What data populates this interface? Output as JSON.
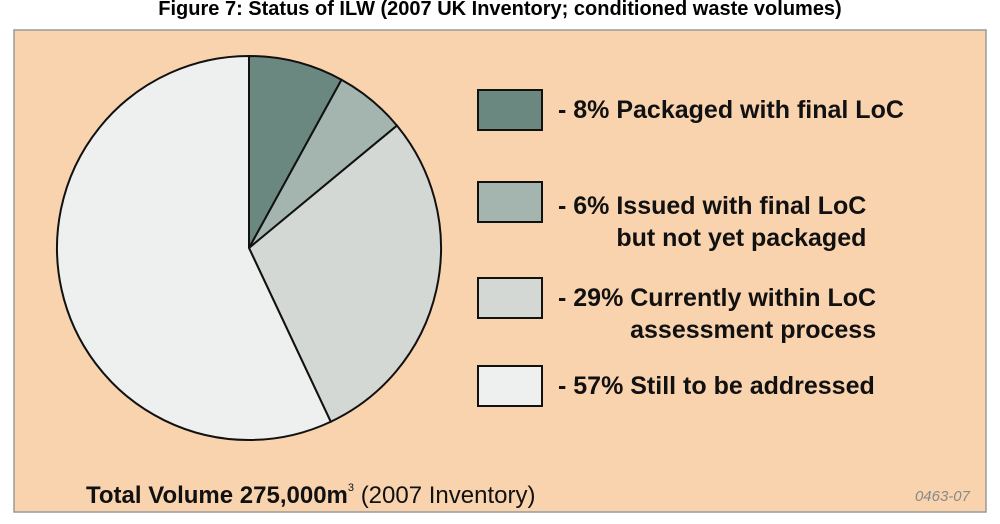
{
  "chart_data": {
    "type": "pie",
    "title": "Figure 7: Status of ILW (2007 UK Inventory; conditioned waste volumes)",
    "categories": [
      "- 8% Packaged with final LoC",
      "- 6% Issued with final LoC\nbut not yet packaged",
      "- 29%  Currently within LoC\nassessment process",
      "- 57%  Still to be addressed"
    ],
    "values": [
      8,
      6,
      29,
      57
    ],
    "colors": [
      "#6b8880",
      "#a3b5ae",
      "#d3d8d4",
      "#eef0ef"
    ],
    "annotations": [
      "Total Volume 275,000m",
      "3",
      "(2007 Inventory)",
      "0463-07"
    ]
  }
}
